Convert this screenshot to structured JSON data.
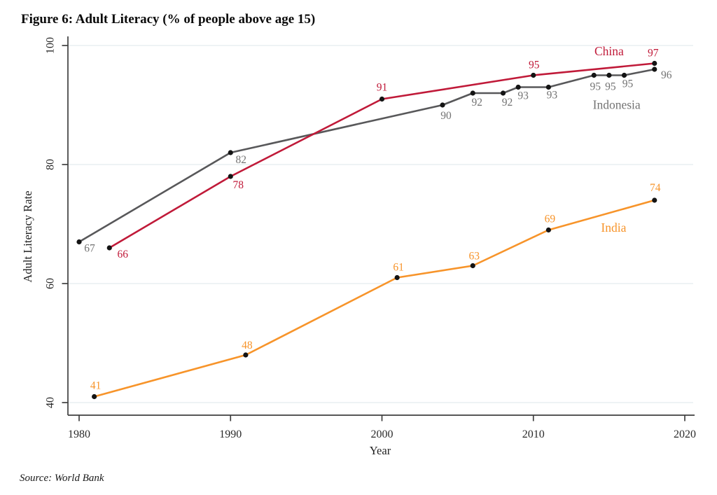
{
  "figure": {
    "title": "Figure 6: Adult Literacy (% of people above age 15)",
    "source_note": "Source: World Bank"
  },
  "chart_data": {
    "type": "line",
    "title": "Figure 6: Adult Literacy (% of people above age 15)",
    "xlabel": "Year",
    "ylabel": "Adult Literacy Rate",
    "x_ticks": [
      1980,
      1990,
      2000,
      2010,
      2020
    ],
    "y_ticks": [
      40,
      60,
      80,
      100
    ],
    "xlim": [
      1979.3,
      2020.6
    ],
    "ylim": [
      37.9,
      101.5
    ],
    "grid": "horizontal lines at y ticks",
    "legend": "inline labels next to each line",
    "colors": {
      "axis": "#3f3f3f",
      "gridline": "#e9eff2",
      "marker": "#141414",
      "tick_text": "#2a2a2a"
    },
    "series": [
      {
        "name": "Indonesia",
        "color": "#58585a",
        "label_color": "#737373",
        "name_label": {
          "text": "Indonesia",
          "x": 2015.5,
          "y": 89.35
        },
        "points": [
          {
            "year": 1980,
            "value": 67,
            "label": "67",
            "dx": 15,
            "dy": 14
          },
          {
            "year": 1990,
            "value": 82,
            "label": "82",
            "dx": 15,
            "dy": 15
          },
          {
            "year": 2004,
            "value": 90,
            "label": "90",
            "dx": 5,
            "dy": 20
          },
          {
            "year": 2006,
            "value": 92,
            "label": "92",
            "dx": 6,
            "dy": 18
          },
          {
            "year": 2008,
            "value": 92,
            "label": "92",
            "dx": 6,
            "dy": 18
          },
          {
            "year": 2009,
            "value": 93,
            "label": "93",
            "dx": 7,
            "dy": 17
          },
          {
            "year": 2011,
            "value": 93,
            "label": "93",
            "dx": 5,
            "dy": 16
          },
          {
            "year": 2014,
            "value": 95,
            "label": "95",
            "dx": 2,
            "dy": 21
          },
          {
            "year": 2015,
            "value": 95,
            "label": "95",
            "dx": 2,
            "dy": 21
          },
          {
            "year": 2016,
            "value": 95,
            "label": "95",
            "dx": 5,
            "dy": 17
          },
          {
            "year": 2018,
            "value": 96,
            "label": "96",
            "dx": 17,
            "dy": 13
          }
        ]
      },
      {
        "name": "China",
        "color": "#c01a39",
        "label_color": "#c01a39",
        "name_label": {
          "text": "China",
          "x": 2015.0,
          "y": 98.35
        },
        "points": [
          {
            "year": 1982,
            "value": 66,
            "label": "66",
            "dx": 19,
            "dy": 14
          },
          {
            "year": 1990,
            "value": 78,
            "label": "78",
            "dx": 11,
            "dy": 17
          },
          {
            "year": 2000,
            "value": 91,
            "label": "91",
            "dx": 0,
            "dy": -12
          },
          {
            "year": 2010,
            "value": 95,
            "label": "95",
            "dx": 1,
            "dy": -10
          },
          {
            "year": 2018,
            "value": 97,
            "label": "97",
            "dx": -2,
            "dy": -10
          }
        ]
      },
      {
        "name": "India",
        "color": "#f7942a",
        "label_color": "#f7942a",
        "name_label": {
          "text": "India",
          "x": 2015.3,
          "y": 68.7
        },
        "points": [
          {
            "year": 1981,
            "value": 41,
            "label": "41",
            "dx": 2,
            "dy": -11
          },
          {
            "year": 1991,
            "value": 48,
            "label": "48",
            "dx": 2,
            "dy": -9
          },
          {
            "year": 2001,
            "value": 61,
            "label": "61",
            "dx": 2,
            "dy": -10
          },
          {
            "year": 2006,
            "value": 63,
            "label": "63",
            "dx": 2,
            "dy": -9
          },
          {
            "year": 2011,
            "value": 69,
            "label": "69",
            "dx": 2,
            "dy": -11
          },
          {
            "year": 2018,
            "value": 74,
            "label": "74",
            "dx": 1,
            "dy": -13
          }
        ]
      }
    ]
  }
}
